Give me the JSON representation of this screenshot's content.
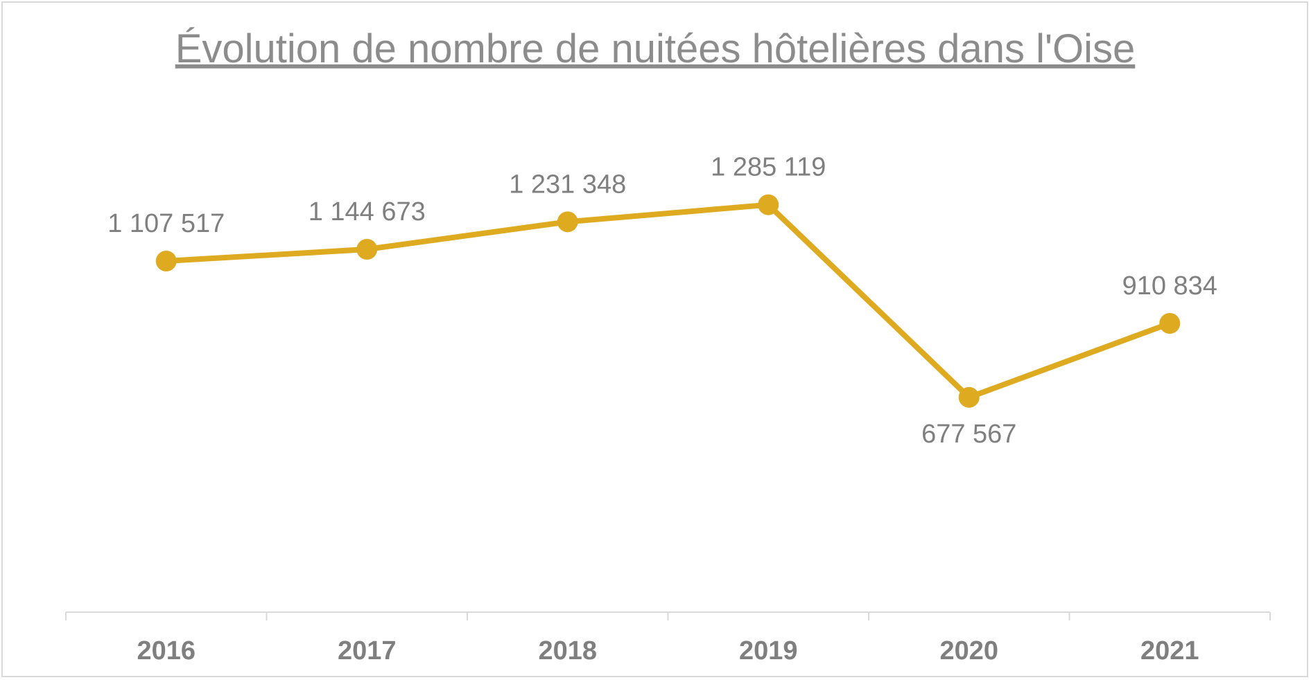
{
  "chart_data": {
    "type": "line",
    "title": "Évolution de nombre de nuitées hôtelières dans l'Oise",
    "xlabel": "",
    "ylabel": "",
    "categories": [
      "2016",
      "2017",
      "2018",
      "2019",
      "2020",
      "2021"
    ],
    "series": [
      {
        "values": [
          1107517,
          1144673,
          1231348,
          1285119,
          677567,
          910834
        ],
        "labels": [
          "1 107 517",
          "1 144 673",
          "1 231 348",
          "1 285 119",
          "677 567",
          "910 834"
        ],
        "color": "#ddaa20"
      }
    ],
    "ylim": [
      0,
      1800000
    ],
    "grid": false,
    "legend": "none",
    "frame_color": "#d9d9d9",
    "text_color": "#7f7f7f"
  }
}
